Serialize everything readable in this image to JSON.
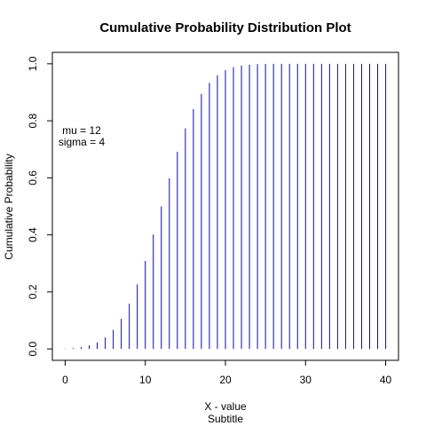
{
  "chart_data": {
    "type": "bar",
    "title": "Cumulative Probability Distribution Plot",
    "xlabel": "X - value",
    "ylabel": "Cumulative Probability",
    "subtitle": "Subtitle",
    "x": [
      0,
      1,
      2,
      3,
      4,
      5,
      6,
      7,
      8,
      9,
      10,
      11,
      12,
      13,
      14,
      15,
      16,
      17,
      18,
      19,
      20,
      21,
      22,
      23,
      24,
      25,
      26,
      27,
      28,
      29,
      30,
      31,
      32,
      33,
      34,
      35,
      36,
      37,
      38,
      39,
      40
    ],
    "values": [
      0.0013,
      0.003,
      0.0062,
      0.0122,
      0.0228,
      0.0401,
      0.0668,
      0.1056,
      0.1587,
      0.2266,
      0.3085,
      0.4013,
      0.5,
      0.5987,
      0.6915,
      0.7734,
      0.8413,
      0.8944,
      0.9332,
      0.9599,
      0.9772,
      0.9878,
      0.9938,
      0.997,
      0.9987,
      0.9995,
      0.9998,
      0.9999,
      1.0,
      1.0,
      1.0,
      1.0,
      1.0,
      1.0,
      1.0,
      1.0,
      1.0,
      1.0,
      1.0,
      1.0,
      1.0
    ],
    "xlim": [
      -1.6,
      41.6
    ],
    "ylim": [
      -0.04,
      1.04
    ],
    "xticks": [
      0,
      10,
      20,
      30,
      40
    ],
    "yticks": [
      0.0,
      0.2,
      0.4,
      0.6,
      0.8,
      1.0
    ],
    "xtick_labels": [
      "0",
      "10",
      "20",
      "30",
      "40"
    ],
    "ytick_labels": [
      "0.0",
      "0.2",
      "0.4",
      "0.6",
      "0.8",
      "1.0"
    ],
    "annotations": [
      "mu = 12",
      "sigma = 4"
    ],
    "bar_color": "#0000ff",
    "grid": false,
    "legend": "none"
  }
}
